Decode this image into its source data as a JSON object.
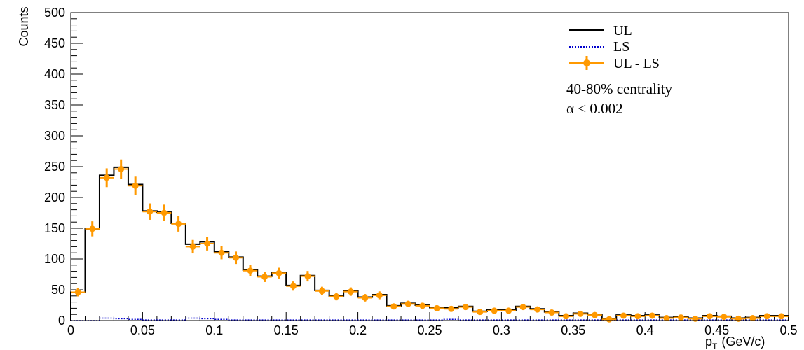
{
  "chart_data": {
    "type": "histogram",
    "ylabel": "Counts",
    "xlabel_main": "p",
    "xlabel_sub": "T",
    "xlabel_units": "(GeV/c)",
    "xlim": [
      0,
      0.5
    ],
    "ylim": [
      0,
      500
    ],
    "x_tick_labels": [
      "0",
      "0.05",
      "0.1",
      "0.15",
      "0.2",
      "0.25",
      "0.3",
      "0.35",
      "0.4",
      "0.45",
      "0.5"
    ],
    "x_tick_values": [
      0,
      0.05,
      0.1,
      0.15,
      0.2,
      0.25,
      0.3,
      0.35,
      0.4,
      0.45,
      0.5
    ],
    "y_tick_labels": [
      "0",
      "50",
      "100",
      "150",
      "200",
      "250",
      "300",
      "350",
      "400",
      "450",
      "500"
    ],
    "y_tick_values": [
      0,
      50,
      100,
      150,
      200,
      250,
      300,
      350,
      400,
      450,
      500
    ],
    "bin_width": 0.01,
    "series": [
      {
        "name": "UL",
        "style": "solid-step",
        "color": "#000000",
        "values": [
          46,
          149,
          236,
          249,
          221,
          178,
          176,
          158,
          124,
          128,
          112,
          103,
          82,
          72,
          78,
          57,
          73,
          49,
          40,
          48,
          38,
          42,
          24,
          28,
          25,
          21,
          21,
          23,
          15,
          17,
          17,
          23,
          19,
          14,
          8,
          12,
          10,
          3,
          9,
          8,
          9,
          5,
          6,
          4,
          8,
          7,
          4,
          5,
          8,
          8
        ]
      },
      {
        "name": "LS",
        "style": "dotted-step",
        "color": "#0000cc",
        "values": [
          0,
          0,
          4,
          3,
          2,
          1,
          1,
          1,
          4,
          3,
          2,
          1,
          1,
          1,
          1,
          1,
          1,
          1,
          1,
          1,
          1,
          1,
          1,
          1,
          1,
          1,
          2,
          1,
          1,
          1,
          1,
          1,
          1,
          1,
          1,
          1,
          1,
          1,
          1,
          1,
          1,
          1,
          1,
          1,
          1,
          1,
          1,
          1,
          1,
          1
        ]
      },
      {
        "name": "UL - LS",
        "style": "points-with-errors",
        "color": "#ff9900",
        "values": [
          46,
          149,
          232,
          246,
          219,
          177,
          175,
          157,
          120,
          125,
          110,
          102,
          81,
          71,
          77,
          56,
          72,
          48,
          39,
          47,
          37,
          41,
          23,
          27,
          24,
          20,
          19,
          22,
          14,
          16,
          16,
          22,
          18,
          13,
          7,
          11,
          9,
          2,
          8,
          7,
          8,
          4,
          5,
          3,
          7,
          6,
          3,
          4,
          7,
          7
        ]
      }
    ],
    "legend": [
      "UL",
      "LS",
      "UL - LS"
    ],
    "legend_position": "top-right",
    "annotations": [
      "40-80% centrality",
      "α < 0.002"
    ],
    "grid": false
  }
}
